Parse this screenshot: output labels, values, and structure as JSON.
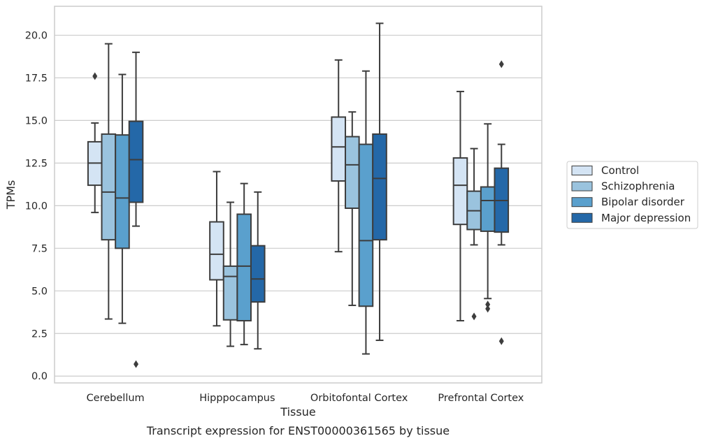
{
  "chart_data": {
    "type": "box",
    "title": "",
    "caption": "Transcript expression for ENST00000361565 by tissue",
    "xlabel": "Tissue",
    "ylabel": "TPMs",
    "ylim": [
      -0.4,
      21.7
    ],
    "yticks": [
      "0.0",
      "2.5",
      "5.0",
      "7.5",
      "10.0",
      "12.5",
      "15.0",
      "17.5",
      "20.0"
    ],
    "grid": "horizontal",
    "legend_position": "right",
    "categories": [
      "Cerebellum",
      "Hipppocampus",
      "Orbitofontal Cortex",
      "Prefrontal Cortex"
    ],
    "series": [
      {
        "name": "Control",
        "color": "#d4e4f4",
        "boxes": [
          {
            "whisker_low": 9.6,
            "q1": 11.2,
            "median": 12.5,
            "q3": 13.75,
            "whisker_high": 14.85,
            "outliers": [
              17.6
            ]
          },
          {
            "whisker_low": 2.95,
            "q1": 5.65,
            "median": 7.15,
            "q3": 9.05,
            "whisker_high": 12.0,
            "outliers": []
          },
          {
            "whisker_low": 7.3,
            "q1": 11.45,
            "median": 13.45,
            "q3": 15.2,
            "whisker_high": 18.55,
            "outliers": []
          },
          {
            "whisker_low": 3.25,
            "q1": 8.9,
            "median": 11.2,
            "q3": 12.8,
            "whisker_high": 16.7,
            "outliers": []
          }
        ]
      },
      {
        "name": "Schizophrenia",
        "color": "#9ac3de",
        "boxes": [
          {
            "whisker_low": 3.35,
            "q1": 8.0,
            "median": 10.8,
            "q3": 14.2,
            "whisker_high": 19.5,
            "outliers": []
          },
          {
            "whisker_low": 1.75,
            "q1": 3.3,
            "median": 5.85,
            "q3": 6.45,
            "whisker_high": 10.2,
            "outliers": []
          },
          {
            "whisker_low": 4.15,
            "q1": 9.85,
            "median": 12.4,
            "q3": 14.05,
            "whisker_high": 15.5,
            "outliers": []
          },
          {
            "whisker_low": 7.7,
            "q1": 8.6,
            "median": 9.7,
            "q3": 10.85,
            "whisker_high": 13.35,
            "outliers": [
              3.5
            ]
          }
        ]
      },
      {
        "name": "Bipolar disorder",
        "color": "#5aa0cd",
        "boxes": [
          {
            "whisker_low": 3.1,
            "q1": 7.5,
            "median": 10.45,
            "q3": 14.15,
            "whisker_high": 17.7,
            "outliers": []
          },
          {
            "whisker_low": 1.85,
            "q1": 3.25,
            "median": 6.45,
            "q3": 9.5,
            "whisker_high": 11.3,
            "outliers": []
          },
          {
            "whisker_low": 1.3,
            "q1": 4.1,
            "median": 7.95,
            "q3": 13.6,
            "whisker_high": 17.9,
            "outliers": []
          },
          {
            "whisker_low": 4.55,
            "q1": 8.5,
            "median": 10.3,
            "q3": 11.1,
            "whisker_high": 14.8,
            "outliers": [
              4.2,
              3.95
            ]
          }
        ]
      },
      {
        "name": "Major depression",
        "color": "#2468a8",
        "boxes": [
          {
            "whisker_low": 8.8,
            "q1": 10.2,
            "median": 12.7,
            "q3": 14.95,
            "whisker_high": 19.0,
            "outliers": [
              0.7
            ]
          },
          {
            "whisker_low": 1.6,
            "q1": 4.35,
            "median": 5.7,
            "q3": 7.65,
            "whisker_high": 10.8,
            "outliers": []
          },
          {
            "whisker_low": 2.1,
            "q1": 8.0,
            "median": 11.6,
            "q3": 14.2,
            "whisker_high": 20.7,
            "outliers": []
          },
          {
            "whisker_low": 7.7,
            "q1": 8.45,
            "median": 10.3,
            "q3": 12.2,
            "whisker_high": 13.6,
            "outliers": [
              18.3,
              2.05
            ]
          }
        ]
      }
    ]
  }
}
